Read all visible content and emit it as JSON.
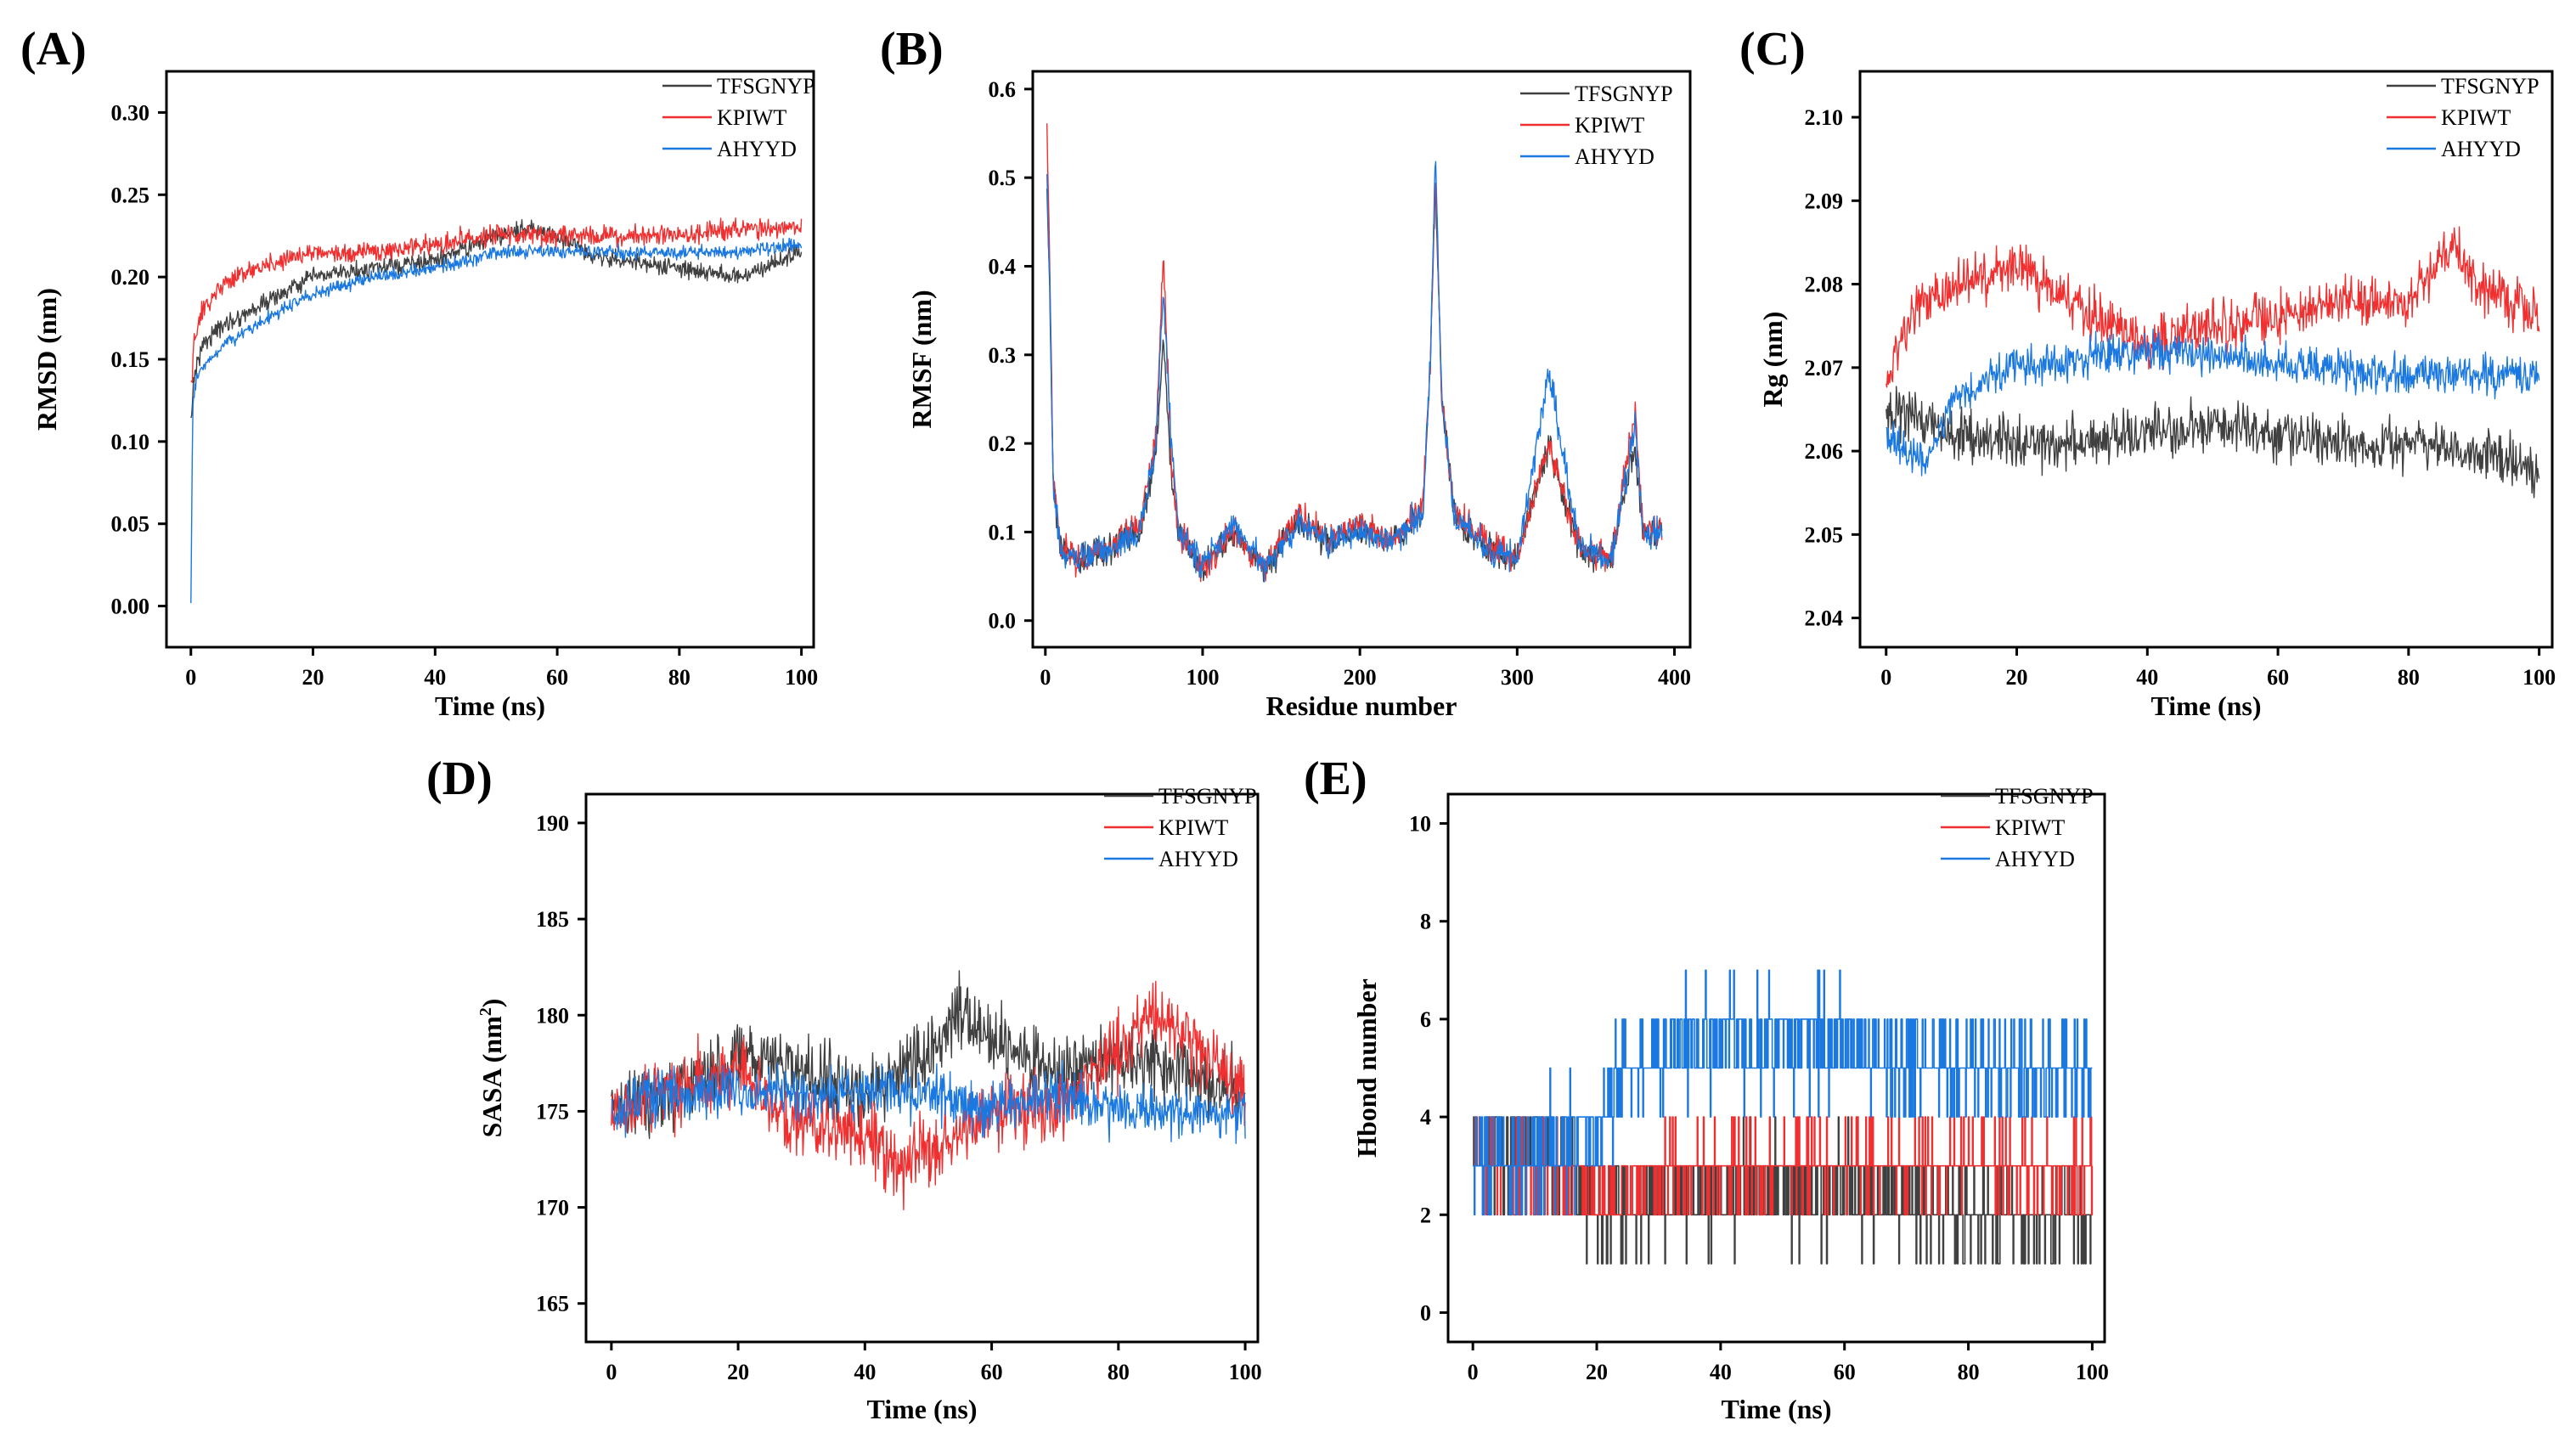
{
  "colors": {
    "TFSGNYP": "#404040",
    "KPIWT": "#f03030",
    "AHYYD": "#1a78e0"
  },
  "chart_data": [
    {
      "panel": "(A)",
      "type": "line",
      "xlabel": "Time (ns)",
      "ylabel": "RMSD (nm)",
      "xlim": [
        -4,
        102
      ],
      "ylim": [
        -0.025,
        0.325
      ],
      "xticks": [
        0,
        20,
        40,
        60,
        80,
        100
      ],
      "yticks": [
        0.0,
        0.05,
        0.1,
        0.15,
        0.2,
        0.25,
        0.3
      ],
      "ytick_labels": [
        "0.00",
        "0.05",
        "0.10",
        "0.15",
        "0.20",
        "0.25",
        "0.30"
      ],
      "legend": [
        "TFSGNYP",
        "KPIWT",
        "AHYYD"
      ],
      "series": [
        {
          "name": "TFSGNYP",
          "x": [
            0,
            0.5,
            2,
            5,
            10,
            15,
            20,
            30,
            40,
            50,
            55,
            60,
            65,
            70,
            80,
            90,
            100
          ],
          "values": [
            0.11,
            0.14,
            0.16,
            0.17,
            0.18,
            0.19,
            0.2,
            0.205,
            0.21,
            0.225,
            0.23,
            0.225,
            0.215,
            0.21,
            0.205,
            0.2,
            0.215
          ],
          "noise": 0.008
        },
        {
          "name": "KPIWT",
          "x": [
            0,
            0.5,
            2,
            5,
            10,
            15,
            20,
            30,
            40,
            50,
            60,
            70,
            80,
            90,
            100
          ],
          "values": [
            0.13,
            0.16,
            0.18,
            0.195,
            0.205,
            0.21,
            0.215,
            0.215,
            0.22,
            0.225,
            0.225,
            0.225,
            0.225,
            0.23,
            0.23
          ],
          "noise": 0.009
        },
        {
          "name": "AHYYD",
          "x": [
            0,
            0.3,
            1,
            3,
            6,
            10,
            15,
            20,
            30,
            40,
            50,
            60,
            70,
            80,
            90,
            100
          ],
          "values": [
            0.0,
            0.12,
            0.14,
            0.15,
            0.16,
            0.17,
            0.18,
            0.19,
            0.2,
            0.205,
            0.215,
            0.215,
            0.215,
            0.215,
            0.215,
            0.22
          ],
          "noise": 0.006
        }
      ]
    },
    {
      "panel": "(B)",
      "type": "line",
      "xlabel": "Residue number",
      "ylabel": "RMSF (nm)",
      "xlim": [
        -8,
        410
      ],
      "ylim": [
        -0.03,
        0.62
      ],
      "xticks": [
        0,
        100,
        200,
        300,
        400
      ],
      "yticks": [
        0.0,
        0.1,
        0.2,
        0.3,
        0.4,
        0.5,
        0.6
      ],
      "ytick_labels": [
        "0.0",
        "0.1",
        "0.2",
        "0.3",
        "0.4",
        "0.5",
        "0.6"
      ],
      "legend": [
        "TFSGNYP",
        "KPIWT",
        "AHYYD"
      ],
      "series": [
        {
          "name": "TFSGNYP",
          "x": [
            1,
            3,
            5,
            10,
            20,
            40,
            60,
            70,
            75,
            80,
            85,
            100,
            120,
            140,
            160,
            180,
            200,
            220,
            240,
            245,
            248,
            252,
            260,
            280,
            300,
            320,
            340,
            360,
            375,
            380,
            392
          ],
          "values": [
            0.49,
            0.35,
            0.15,
            0.08,
            0.07,
            0.08,
            0.1,
            0.18,
            0.32,
            0.17,
            0.1,
            0.06,
            0.1,
            0.06,
            0.11,
            0.09,
            0.1,
            0.09,
            0.12,
            0.3,
            0.5,
            0.25,
            0.12,
            0.08,
            0.07,
            0.2,
            0.08,
            0.07,
            0.2,
            0.1,
            0.1
          ],
          "noise": 0.025
        },
        {
          "name": "KPIWT",
          "x": [
            1,
            3,
            5,
            10,
            20,
            40,
            60,
            70,
            75,
            80,
            85,
            100,
            120,
            140,
            160,
            180,
            200,
            220,
            240,
            245,
            248,
            252,
            260,
            280,
            300,
            320,
            340,
            360,
            375,
            380,
            392
          ],
          "values": [
            0.56,
            0.38,
            0.16,
            0.08,
            0.07,
            0.08,
            0.11,
            0.2,
            0.41,
            0.18,
            0.1,
            0.06,
            0.1,
            0.06,
            0.12,
            0.09,
            0.11,
            0.09,
            0.13,
            0.3,
            0.51,
            0.25,
            0.12,
            0.09,
            0.07,
            0.2,
            0.08,
            0.07,
            0.24,
            0.1,
            0.1
          ],
          "noise": 0.025
        },
        {
          "name": "AHYYD",
          "x": [
            1,
            3,
            5,
            10,
            20,
            40,
            60,
            70,
            75,
            80,
            85,
            100,
            120,
            140,
            160,
            180,
            200,
            220,
            240,
            245,
            248,
            252,
            260,
            280,
            300,
            320,
            340,
            360,
            375,
            380,
            392
          ],
          "values": [
            0.5,
            0.36,
            0.15,
            0.08,
            0.07,
            0.08,
            0.1,
            0.19,
            0.38,
            0.2,
            0.1,
            0.06,
            0.11,
            0.06,
            0.11,
            0.09,
            0.1,
            0.09,
            0.12,
            0.3,
            0.53,
            0.25,
            0.12,
            0.08,
            0.07,
            0.28,
            0.08,
            0.07,
            0.22,
            0.1,
            0.1
          ],
          "noise": 0.025
        }
      ]
    },
    {
      "panel": "(C)",
      "type": "line",
      "xlabel": "Time (ns)",
      "ylabel": "Rg (nm)",
      "xlim": [
        -4,
        102
      ],
      "ylim": [
        2.0365,
        2.1055
      ],
      "xticks": [
        0,
        20,
        40,
        60,
        80,
        100
      ],
      "yticks": [
        2.04,
        2.05,
        2.06,
        2.07,
        2.08,
        2.09,
        2.1
      ],
      "ytick_labels": [
        "2.04",
        "2.05",
        "2.06",
        "2.07",
        "2.08",
        "2.09",
        "2.10"
      ],
      "legend": [
        "TFSGNYP",
        "KPIWT",
        "AHYYD"
      ],
      "series": [
        {
          "name": "TFSGNYP",
          "x": [
            0,
            5,
            10,
            20,
            30,
            40,
            50,
            60,
            70,
            80,
            90,
            100
          ],
          "values": [
            2.065,
            2.064,
            2.062,
            2.061,
            2.061,
            2.062,
            2.063,
            2.062,
            2.061,
            2.061,
            2.06,
            2.058
          ],
          "noise": 0.0045
        },
        {
          "name": "KPIWT",
          "x": [
            0,
            5,
            10,
            20,
            30,
            40,
            50,
            60,
            70,
            80,
            87,
            90,
            100
          ],
          "values": [
            2.068,
            2.078,
            2.08,
            2.082,
            2.077,
            2.073,
            2.075,
            2.076,
            2.078,
            2.078,
            2.085,
            2.08,
            2.076
          ],
          "noise": 0.0045
        },
        {
          "name": "AHYYD",
          "x": [
            0,
            3,
            6,
            10,
            20,
            30,
            40,
            50,
            60,
            70,
            80,
            90,
            100
          ],
          "values": [
            2.062,
            2.06,
            2.058,
            2.066,
            2.07,
            2.071,
            2.072,
            2.072,
            2.07,
            2.07,
            2.069,
            2.069,
            2.069
          ],
          "noise": 0.0035
        }
      ]
    },
    {
      "panel": "(D)",
      "type": "line",
      "xlabel": "Time (ns)",
      "ylabel": "SASA (nm²)",
      "ylabel_main": "SASA (nm",
      "ylabel_sup": "2",
      "ylabel_close": ")",
      "xlim": [
        -4,
        102
      ],
      "ylim": [
        163,
        191.5
      ],
      "xticks": [
        0,
        20,
        40,
        60,
        80,
        100
      ],
      "yticks": [
        165,
        170,
        175,
        180,
        185,
        190
      ],
      "ytick_labels": [
        "165",
        "170",
        "175",
        "180",
        "185",
        "190"
      ],
      "legend": [
        "TFSGNYP",
        "KPIWT",
        "AHYYD"
      ],
      "series": [
        {
          "name": "TFSGNYP",
          "x": [
            0,
            10,
            20,
            30,
            40,
            50,
            55,
            60,
            70,
            80,
            90,
            100
          ],
          "values": [
            175,
            176,
            178,
            177,
            176,
            178,
            180,
            179,
            177,
            178,
            177,
            176
          ],
          "noise": 2.6
        },
        {
          "name": "KPIWT",
          "x": [
            0,
            10,
            20,
            30,
            40,
            45,
            50,
            60,
            70,
            80,
            85,
            90,
            100
          ],
          "values": [
            175,
            176,
            177,
            174,
            174,
            172,
            173,
            175,
            175,
            178,
            180,
            179,
            176
          ],
          "noise": 2.8
        },
        {
          "name": "AHYYD",
          "x": [
            0,
            10,
            20,
            30,
            40,
            50,
            60,
            70,
            80,
            90,
            100
          ],
          "values": [
            175,
            176,
            176,
            176,
            176,
            176,
            175,
            176,
            175,
            175,
            175
          ],
          "noise": 2.0
        }
      ]
    },
    {
      "panel": "(E)",
      "type": "line",
      "xlabel": "Time (ns)",
      "ylabel": "Hbond number",
      "xlim": [
        -4,
        102
      ],
      "ylim": [
        -0.6,
        10.6
      ],
      "xticks": [
        0,
        20,
        40,
        60,
        80,
        100
      ],
      "yticks": [
        0,
        2,
        4,
        6,
        8,
        10
      ],
      "ytick_labels": [
        "0",
        "2",
        "4",
        "6",
        "8",
        "10"
      ],
      "legend": [
        "TFSGNYP",
        "KPIWT",
        "AHYYD"
      ],
      "series": [
        {
          "name": "TFSGNYP",
          "x": [
            0,
            10,
            20,
            40,
            60,
            80,
            100
          ],
          "values": [
            3,
            3.5,
            2,
            2.5,
            2.5,
            2,
            2
          ],
          "noise": 1.5,
          "integer": true
        },
        {
          "name": "KPIWT",
          "x": [
            0,
            10,
            20,
            40,
            60,
            80,
            100
          ],
          "values": [
            3,
            3,
            2.5,
            3,
            3,
            3,
            3
          ],
          "noise": 1.3,
          "integer": true
        },
        {
          "name": "AHYYD",
          "x": [
            0,
            10,
            20,
            25,
            40,
            60,
            70,
            80,
            100
          ],
          "values": [
            3,
            3,
            4,
            5,
            5.5,
            5.5,
            5,
            5,
            5
          ],
          "noise": 1.6,
          "integer": true
        }
      ]
    }
  ]
}
